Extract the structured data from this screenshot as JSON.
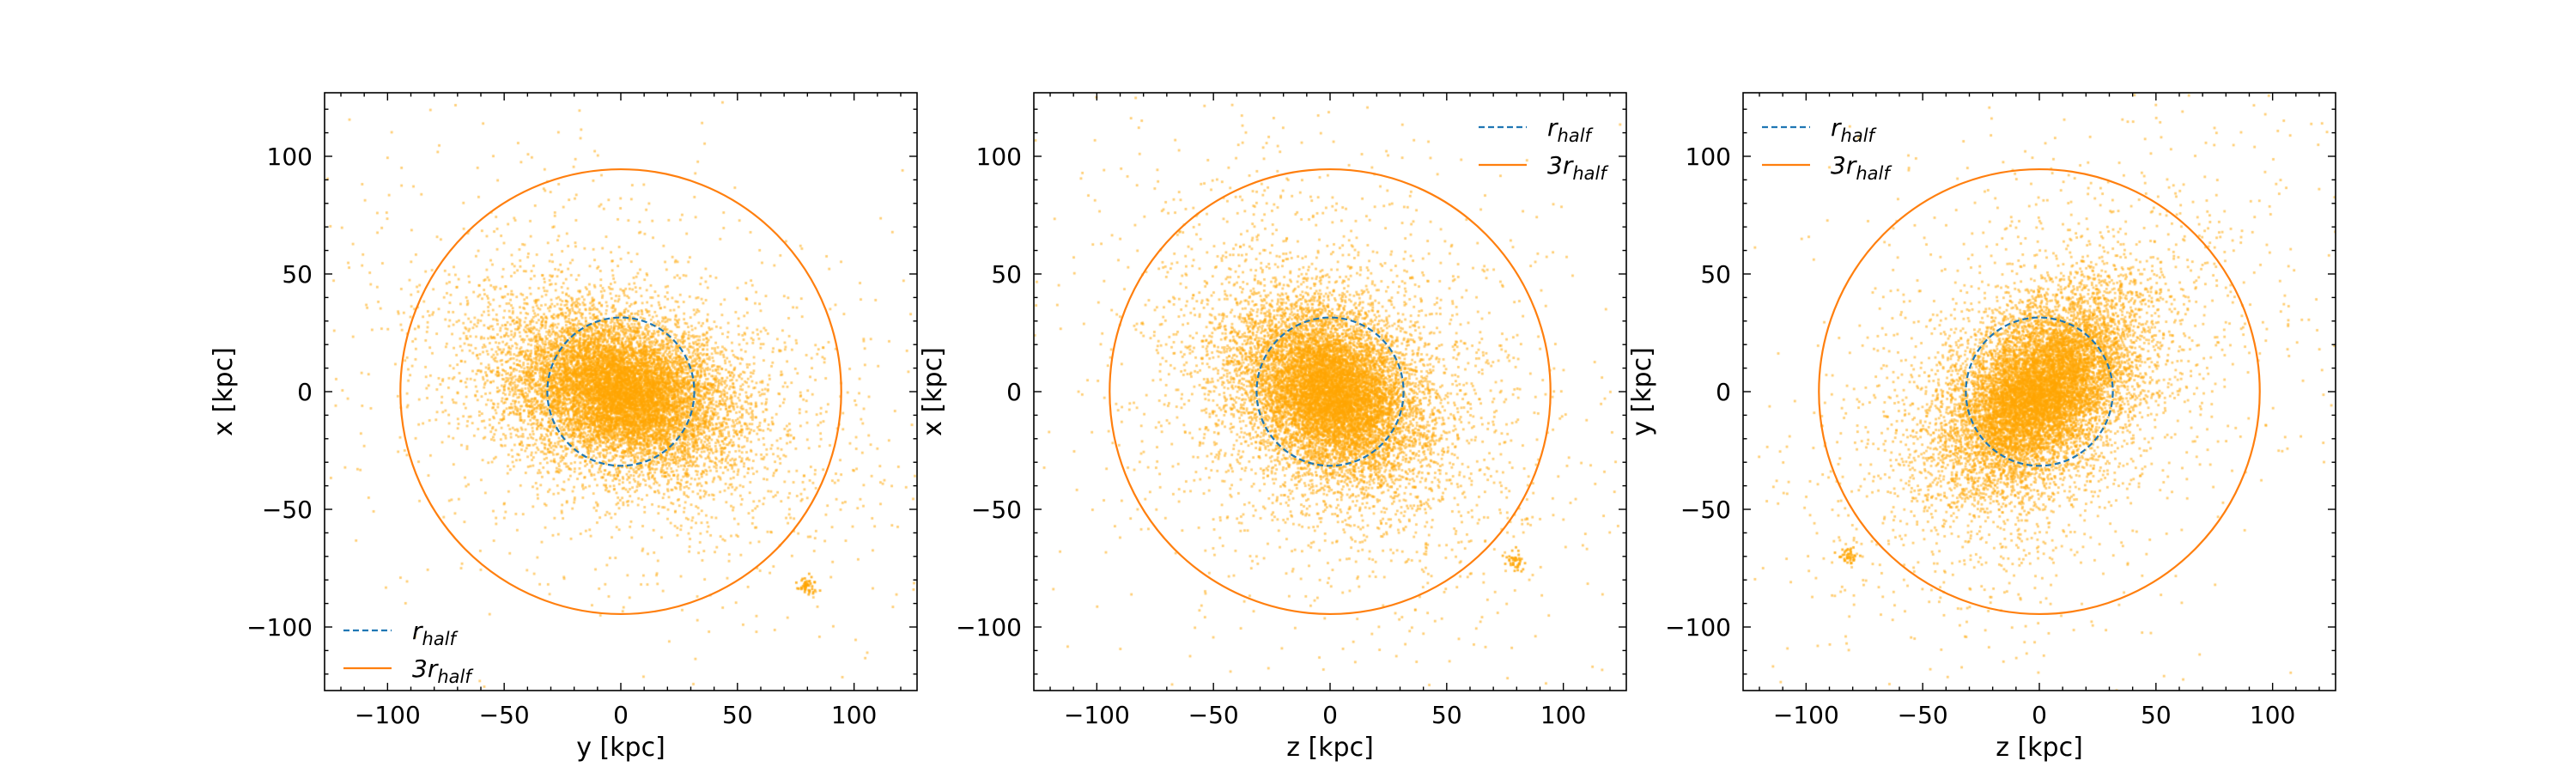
{
  "colors": {
    "points": "#ffa500",
    "r_half": "#1f77b4",
    "three_r_half": "#ff7f0e",
    "axes": "#000000"
  },
  "chart_data": [
    {
      "type": "scatter",
      "xlabel": "y [kpc]",
      "ylabel": "x [kpc]",
      "xlim": [
        -127,
        127
      ],
      "ylim": [
        -127,
        127
      ],
      "xticks": [
        -100,
        -50,
        0,
        50,
        100
      ],
      "yticks": [
        -100,
        -50,
        0,
        50,
        100
      ],
      "grid": false,
      "legend_position": "lower-left",
      "point_cloud": {
        "n_points": 12000,
        "concentrated_fraction": 0.58,
        "concentrated_scale": 15,
        "halo_scale": 60,
        "elongation": {
          "angle_deg": 160,
          "stretch": 1.6
        },
        "clumps": [
          {
            "x": 80,
            "y": -82,
            "n": 50,
            "sigma": 2
          }
        ]
      },
      "series": [
        {
          "name": "r_half",
          "type": "circle",
          "center": [
            0,
            0
          ],
          "radius": 31.5,
          "style": "dashed"
        },
        {
          "name": "3r_half",
          "type": "circle",
          "center": [
            0,
            0
          ],
          "radius": 94.5,
          "style": "solid"
        }
      ],
      "legend": [
        {
          "label": "r",
          "sub": "half",
          "series": "r_half"
        },
        {
          "label": "3r",
          "sub": "half",
          "series": "3r_half"
        }
      ]
    },
    {
      "type": "scatter",
      "xlabel": "z [kpc]",
      "ylabel": "x [kpc]",
      "xlim": [
        -127,
        127
      ],
      "ylim": [
        -127,
        127
      ],
      "xticks": [
        -100,
        -50,
        0,
        50,
        100
      ],
      "yticks": [
        -100,
        -50,
        0,
        50,
        100
      ],
      "grid": false,
      "legend_position": "upper-right",
      "point_cloud": {
        "n_points": 12000,
        "concentrated_fraction": 0.5,
        "concentrated_scale": 16,
        "halo_scale": 60,
        "elongation": {
          "angle_deg": -40,
          "stretch": 1.3
        },
        "clumps": [
          {
            "x": 80,
            "y": -72,
            "n": 40,
            "sigma": 2
          }
        ]
      },
      "series": [
        {
          "name": "r_half",
          "type": "circle",
          "center": [
            0,
            0
          ],
          "radius": 31.5,
          "style": "dashed"
        },
        {
          "name": "3r_half",
          "type": "circle",
          "center": [
            0,
            0
          ],
          "radius": 94.5,
          "style": "solid"
        }
      ],
      "legend": [
        {
          "label": "r",
          "sub": "half",
          "series": "r_half"
        },
        {
          "label": "3r",
          "sub": "half",
          "series": "3r_half"
        }
      ]
    },
    {
      "type": "scatter",
      "xlabel": "z [kpc]",
      "ylabel": "y [kpc]",
      "xlim": [
        -127,
        127
      ],
      "ylim": [
        -127,
        127
      ],
      "xticks": [
        -100,
        -50,
        0,
        50,
        100
      ],
      "yticks": [
        -100,
        -50,
        0,
        50,
        100
      ],
      "grid": false,
      "legend_position": "upper-left",
      "point_cloud": {
        "n_points": 12000,
        "concentrated_fraction": 0.55,
        "concentrated_scale": 15,
        "halo_scale": 60,
        "elongation": {
          "angle_deg": 45,
          "stretch": 1.6
        },
        "clumps": [
          {
            "x": -82,
            "y": -70,
            "n": 40,
            "sigma": 2
          }
        ]
      },
      "series": [
        {
          "name": "r_half",
          "type": "circle",
          "center": [
            0,
            0
          ],
          "radius": 31.5,
          "style": "dashed"
        },
        {
          "name": "3r_half",
          "type": "circle",
          "center": [
            0,
            0
          ],
          "radius": 94.5,
          "style": "solid"
        }
      ],
      "legend": [
        {
          "label": "r",
          "sub": "half",
          "series": "r_half"
        },
        {
          "label": "3r",
          "sub": "half",
          "series": "3r_half"
        }
      ]
    }
  ]
}
